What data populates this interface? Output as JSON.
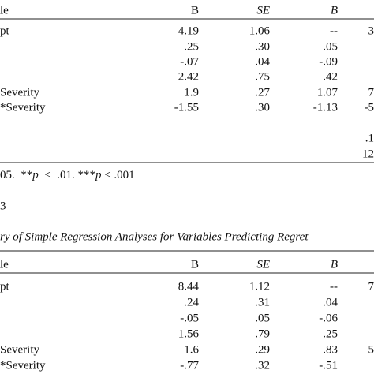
{
  "tables": [
    {
      "header": [
        "le",
        "B",
        "SE",
        "B"
      ],
      "rows": [
        {
          "label": "pt",
          "b": "4.19",
          "se": "1.06",
          "beta": "--",
          "extra": "3"
        },
        {
          "b": ".25",
          "se": ".30",
          "beta": ".05"
        },
        {
          "b": "-.07",
          "se": ".04",
          "beta": "-.09"
        },
        {
          "b": "2.42",
          "se": ".75",
          "beta": ".42"
        },
        {
          "label": "Severity",
          "b": "1.9",
          "se": ".27",
          "beta": "1.07",
          "extra": "7"
        },
        {
          "label": "*Severity",
          "b": "-1.55",
          "se": ".30",
          "beta": "-1.13",
          "extra": "-5"
        },
        {
          "extra": ".1"
        },
        {
          "extra": "12"
        }
      ]
    },
    {
      "header": [
        "le",
        "B",
        "SE",
        "B"
      ],
      "rows": [
        {
          "label": "pt",
          "b": "8.44",
          "se": "1.12",
          "beta": "--",
          "extra": "7"
        },
        {
          "b": ".24",
          "se": ".31",
          "beta": ".04"
        },
        {
          "b": "-.05",
          "se": ".05",
          "beta": "-.06"
        },
        {
          "b": "1.56",
          "se": ".79",
          "beta": ".25"
        },
        {
          "label": "Severity",
          "b": "1.6",
          "se": ".29",
          "beta": ".83",
          "extra": "5"
        },
        {
          "label": "*Severity",
          "b": "-.77",
          "se": ".32",
          "beta": "-.51"
        }
      ]
    }
  ],
  "note": [
    "05.  **",
    "p",
    "  <  .01. ***",
    "p",
    " < .001"
  ],
  "table_number": "3",
  "table_title": "ry of Simple Regression Analyses for Variables Predicting Regret"
}
